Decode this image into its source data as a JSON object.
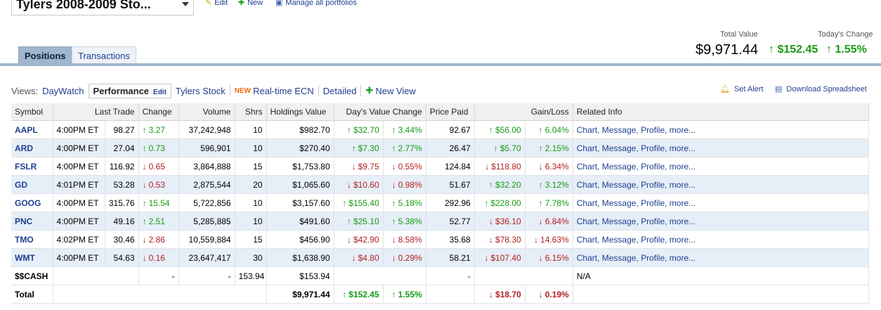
{
  "portfolio": {
    "name": "Tylers 2008-2009 Sto..."
  },
  "top_links": {
    "edit": "Edit",
    "new": "New",
    "manage": "Manage all portfolios"
  },
  "totals": {
    "total_value_label": "Total Value",
    "todays_change_label": "Today's Change",
    "total_value": "$9,971.44",
    "change_amount": "$152.45",
    "change_percent": "1.55%"
  },
  "tabs": {
    "positions": "Positions",
    "transactions": "Transactions"
  },
  "views": {
    "label": "Views:",
    "daywatch": "DayWatch",
    "performance": "Performance",
    "performance_edit": "Edit",
    "tylers_stock": "Tylers Stock",
    "new_badge": "NEW",
    "realtime": "Real-time ECN",
    "detailed": "Detailed",
    "new_view": "New View"
  },
  "actions": {
    "set_alert": "Set Alert",
    "download": "Download Spreadsheet"
  },
  "icons": {
    "edit": "pencil-icon",
    "new": "plus-icon",
    "manage": "chart-icon",
    "alert": "bell-icon",
    "download": "download-icon"
  },
  "colors": {
    "up": "#169a16",
    "down": "#b32020",
    "link": "#1f3f8f",
    "tab_active": "#9fb6cc",
    "row_alt": "#e6eef7"
  },
  "table": {
    "headers": [
      "Symbol",
      "Last Trade",
      "",
      "Change",
      "Volume",
      "Shrs",
      "Holdings Value",
      "Day's Value Change",
      "",
      "Price Paid",
      "",
      "Gain/Loss",
      "Related Info"
    ],
    "rows": [
      [
        "AAPL",
        "4:00PM ET",
        "98.27",
        "3.27",
        "37,242,948",
        "10",
        "$982.70",
        "$32.70",
        "3.44%",
        "92.67",
        "$56.00",
        "6.04%",
        "Chart, Message, Profile, more..."
      ],
      [
        "ARD",
        "4:00PM ET",
        "27.04",
        "0.73",
        "596,901",
        "10",
        "$270.40",
        "$7.30",
        "2.77%",
        "26.47",
        "$5.70",
        "2.15%",
        "Chart, Message, Profile, more..."
      ],
      [
        "FSLR",
        "4:00PM ET",
        "116.92",
        "0.65",
        "3,864,888",
        "15",
        "$1,753.80",
        "$9.75",
        "0.55%",
        "124.84",
        "$118.80",
        "6.34%",
        "Chart, Message, Profile, more..."
      ],
      [
        "GD",
        "4:01PM ET",
        "53.28",
        "0.53",
        "2,875,544",
        "20",
        "$1,065.60",
        "$10.60",
        "0.98%",
        "51.67",
        "$32.20",
        "3.12%",
        "Chart, Message, Profile, more..."
      ],
      [
        "GOOG",
        "4:00PM ET",
        "315.76",
        "15.54",
        "5,722,856",
        "10",
        "$3,157.60",
        "$155.40",
        "5.18%",
        "292.96",
        "$228.00",
        "7.78%",
        "Chart, Message, Profile, more..."
      ],
      [
        "PNC",
        "4:00PM ET",
        "49.16",
        "2.51",
        "5,285,885",
        "10",
        "$491.60",
        "$25.10",
        "5.38%",
        "52.77",
        "$36.10",
        "6.84%",
        "Chart, Message, Profile, more..."
      ],
      [
        "TMO",
        "4:02PM ET",
        "30.46",
        "2.86",
        "10,559,884",
        "15",
        "$456.90",
        "$42.90",
        "8.58%",
        "35.68",
        "$78.30",
        "14.63%",
        "Chart, Message, Profile, more..."
      ],
      [
        "WMT",
        "4:00PM ET",
        "54.63",
        "0.16",
        "23,647,417",
        "30",
        "$1,638.90",
        "$4.80",
        "0.29%",
        "58.21",
        "$107.40",
        "6.15%",
        "Chart, Message, Profile, more..."
      ]
    ],
    "directions": [
      [
        "up",
        "up",
        "up",
        "up"
      ],
      [
        "up",
        "up",
        "up",
        "up"
      ],
      [
        "dn",
        "dn",
        "dn",
        "dn",
        "dn"
      ],
      [
        "dn",
        "dn",
        "dn",
        "up",
        "up"
      ],
      [
        "up",
        "up",
        "up",
        "up",
        "up"
      ],
      [
        "up",
        "up",
        "up",
        "dn",
        "dn"
      ],
      [
        "dn",
        "dn",
        "dn",
        "dn",
        "dn"
      ],
      [
        "dn",
        "dn",
        "dn",
        "dn",
        "dn"
      ]
    ],
    "cash": {
      "symbol": "$$CASH",
      "change": "-",
      "volume": "-",
      "shrs": "153.94",
      "holdings": "$153.94",
      "price_paid": "-",
      "info": "N/A"
    },
    "total": {
      "label": "Total",
      "holdings": "$9,971.44",
      "dvc": "$152.45",
      "dvc_pct": "1.55%",
      "gain": "$18.70",
      "gain_pct": "0.19%"
    }
  }
}
